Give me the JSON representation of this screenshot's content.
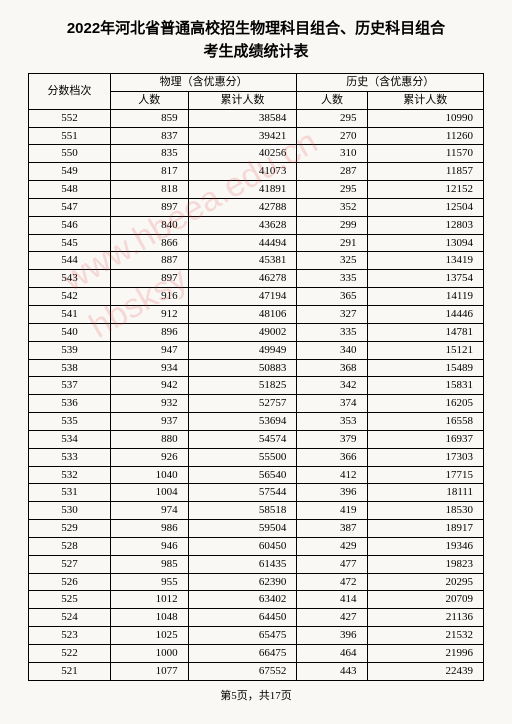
{
  "title_line1": "2022年河北省普通高校招生物理科目组合、历史科目组合",
  "title_line2": "考生成绩统计表",
  "headers": {
    "score": "分数档次",
    "physics": "物理（含优惠分）",
    "history": "历史（含优惠分）",
    "count": "人数",
    "cum": "累计人数"
  },
  "footer": "第5页，共17页",
  "watermark": "河北省教育考试院\n微信公众号 hbsksy\n未经授权 禁止转载使用",
  "rows": [
    {
      "s": 552,
      "pc": 859,
      "pcum": 38584,
      "hc": 295,
      "hcum": 10990
    },
    {
      "s": 551,
      "pc": 837,
      "pcum": 39421,
      "hc": 270,
      "hcum": 11260
    },
    {
      "s": 550,
      "pc": 835,
      "pcum": 40256,
      "hc": 310,
      "hcum": 11570
    },
    {
      "s": 549,
      "pc": 817,
      "pcum": 41073,
      "hc": 287,
      "hcum": 11857
    },
    {
      "s": 548,
      "pc": 818,
      "pcum": 41891,
      "hc": 295,
      "hcum": 12152
    },
    {
      "s": 547,
      "pc": 897,
      "pcum": 42788,
      "hc": 352,
      "hcum": 12504
    },
    {
      "s": 546,
      "pc": 840,
      "pcum": 43628,
      "hc": 299,
      "hcum": 12803
    },
    {
      "s": 545,
      "pc": 866,
      "pcum": 44494,
      "hc": 291,
      "hcum": 13094
    },
    {
      "s": 544,
      "pc": 887,
      "pcum": 45381,
      "hc": 325,
      "hcum": 13419
    },
    {
      "s": 543,
      "pc": 897,
      "pcum": 46278,
      "hc": 335,
      "hcum": 13754
    },
    {
      "s": 542,
      "pc": 916,
      "pcum": 47194,
      "hc": 365,
      "hcum": 14119
    },
    {
      "s": 541,
      "pc": 912,
      "pcum": 48106,
      "hc": 327,
      "hcum": 14446
    },
    {
      "s": 540,
      "pc": 896,
      "pcum": 49002,
      "hc": 335,
      "hcum": 14781
    },
    {
      "s": 539,
      "pc": 947,
      "pcum": 49949,
      "hc": 340,
      "hcum": 15121
    },
    {
      "s": 538,
      "pc": 934,
      "pcum": 50883,
      "hc": 368,
      "hcum": 15489
    },
    {
      "s": 537,
      "pc": 942,
      "pcum": 51825,
      "hc": 342,
      "hcum": 15831
    },
    {
      "s": 536,
      "pc": 932,
      "pcum": 52757,
      "hc": 374,
      "hcum": 16205
    },
    {
      "s": 535,
      "pc": 937,
      "pcum": 53694,
      "hc": 353,
      "hcum": 16558
    },
    {
      "s": 534,
      "pc": 880,
      "pcum": 54574,
      "hc": 379,
      "hcum": 16937
    },
    {
      "s": 533,
      "pc": 926,
      "pcum": 55500,
      "hc": 366,
      "hcum": 17303
    },
    {
      "s": 532,
      "pc": 1040,
      "pcum": 56540,
      "hc": 412,
      "hcum": 17715
    },
    {
      "s": 531,
      "pc": 1004,
      "pcum": 57544,
      "hc": 396,
      "hcum": 18111
    },
    {
      "s": 530,
      "pc": 974,
      "pcum": 58518,
      "hc": 419,
      "hcum": 18530
    },
    {
      "s": 529,
      "pc": 986,
      "pcum": 59504,
      "hc": 387,
      "hcum": 18917
    },
    {
      "s": 528,
      "pc": 946,
      "pcum": 60450,
      "hc": 429,
      "hcum": 19346
    },
    {
      "s": 527,
      "pc": 985,
      "pcum": 61435,
      "hc": 477,
      "hcum": 19823
    },
    {
      "s": 526,
      "pc": 955,
      "pcum": 62390,
      "hc": 472,
      "hcum": 20295
    },
    {
      "s": 525,
      "pc": 1012,
      "pcum": 63402,
      "hc": 414,
      "hcum": 20709
    },
    {
      "s": 524,
      "pc": 1048,
      "pcum": 64450,
      "hc": 427,
      "hcum": 21136
    },
    {
      "s": 523,
      "pc": 1025,
      "pcum": 65475,
      "hc": 396,
      "hcum": 21532
    },
    {
      "s": 522,
      "pc": 1000,
      "pcum": 66475,
      "hc": 464,
      "hcum": 21996
    },
    {
      "s": 521,
      "pc": 1077,
      "pcum": 67552,
      "hc": 443,
      "hcum": 22439
    }
  ]
}
